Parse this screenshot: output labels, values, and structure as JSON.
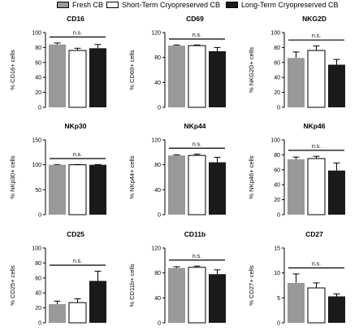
{
  "legend": [
    {
      "label": "Fresh CB",
      "color": "#999999"
    },
    {
      "label": "Short-Term Cryopreserved CB",
      "color": "#ffffff"
    },
    {
      "label": "Long-Term Cryopreserved CB",
      "color": "#1a1a1a"
    }
  ],
  "chart_data": [
    {
      "type": "bar",
      "title": "CD16",
      "ylabel": "% CD16+ cells",
      "ylim": [
        0,
        100
      ],
      "yticks": [
        0,
        20,
        40,
        60,
        80,
        100
      ],
      "categories": [
        "Fresh CB",
        "Short-Term Cryopreserved CB",
        "Long-Term Cryopreserved CB"
      ],
      "values": [
        84,
        76,
        79
      ],
      "errors": [
        2,
        3,
        5
      ],
      "annotation": "n.s."
    },
    {
      "type": "bar",
      "title": "CD69",
      "ylabel": "% CD69+ cells",
      "ylim": [
        0,
        120
      ],
      "yticks": [
        0,
        40,
        80,
        120
      ],
      "categories": [
        "Fresh CB",
        "Short-Term Cryopreserved CB",
        "Long-Term Cryopreserved CB"
      ],
      "values": [
        99,
        99,
        90
      ],
      "errors": [
        1,
        1,
        6
      ],
      "annotation": "n.s."
    },
    {
      "type": "bar",
      "title": "NKG2D",
      "ylabel": "% NKG2D+ cells",
      "ylim": [
        0,
        100
      ],
      "yticks": [
        0,
        20,
        40,
        60,
        80,
        100
      ],
      "categories": [
        "Fresh CB",
        "Short-Term Cryopreserved CB",
        "Long-Term Cryopreserved CB"
      ],
      "values": [
        66,
        76,
        57
      ],
      "errors": [
        8,
        6,
        7
      ],
      "annotation": "n.s."
    },
    {
      "type": "bar",
      "title": "NKp30",
      "ylabel": "% NKp30+ cells",
      "ylim": [
        0,
        150
      ],
      "yticks": [
        0,
        50,
        100,
        150
      ],
      "categories": [
        "Fresh CB",
        "Short-Term Cryopreserved CB",
        "Long-Term Cryopreserved CB"
      ],
      "values": [
        100,
        100,
        100
      ],
      "errors": [
        0.5,
        0.5,
        0.5
      ],
      "annotation": "n.s."
    },
    {
      "type": "bar",
      "title": "NKp44",
      "ylabel": "% NKp44+ cells",
      "ylim": [
        0,
        120
      ],
      "yticks": [
        0,
        40,
        80,
        120
      ],
      "categories": [
        "Fresh CB",
        "Short-Term Cryopreserved CB",
        "Long-Term Cryopreserved CB"
      ],
      "values": [
        95,
        95,
        84
      ],
      "errors": [
        1,
        2,
        8
      ],
      "annotation": "n.s."
    },
    {
      "type": "bar",
      "title": "NKp46",
      "ylabel": "% NKp46+ cells",
      "ylim": [
        0,
        100
      ],
      "yticks": [
        0,
        20,
        40,
        60,
        80,
        100
      ],
      "categories": [
        "Fresh CB",
        "Short-Term Cryopreserved CB",
        "Long-Term Cryopreserved CB"
      ],
      "values": [
        74,
        75,
        59
      ],
      "errors": [
        3,
        3,
        10
      ],
      "annotation": "n.s."
    },
    {
      "type": "bar",
      "title": "CD25",
      "ylabel": "% CD25+ cells",
      "ylim": [
        0,
        100
      ],
      "yticks": [
        0,
        20,
        40,
        60,
        80,
        100
      ],
      "categories": [
        "Fresh CB",
        "Short-Term Cryopreserved CB",
        "Long-Term Cryopreserved CB"
      ],
      "values": [
        25,
        27,
        56
      ],
      "errors": [
        4,
        5,
        13
      ],
      "annotation": "n.s."
    },
    {
      "type": "bar",
      "title": "CD11b",
      "ylabel": "% CD11b+ cells",
      "ylim": [
        0,
        120
      ],
      "yticks": [
        0,
        40,
        80,
        120
      ],
      "categories": [
        "Fresh CB",
        "Short-Term Cryopreserved CB",
        "Long-Term Cryopreserved CB"
      ],
      "values": [
        88,
        89,
        78
      ],
      "errors": [
        2,
        2,
        7
      ],
      "annotation": "n.s."
    },
    {
      "type": "bar",
      "title": "CD27",
      "ylabel": "% CD27+ cells",
      "ylim": [
        0,
        15
      ],
      "yticks": [
        0,
        5,
        10,
        15
      ],
      "categories": [
        "Fresh CB",
        "Short-Term Cryopreserved CB",
        "Long-Term Cryopreserved CB"
      ],
      "values": [
        8.0,
        7.0,
        5.3
      ],
      "errors": [
        1.8,
        1.0,
        0.5
      ],
      "annotation": "n.s."
    }
  ]
}
